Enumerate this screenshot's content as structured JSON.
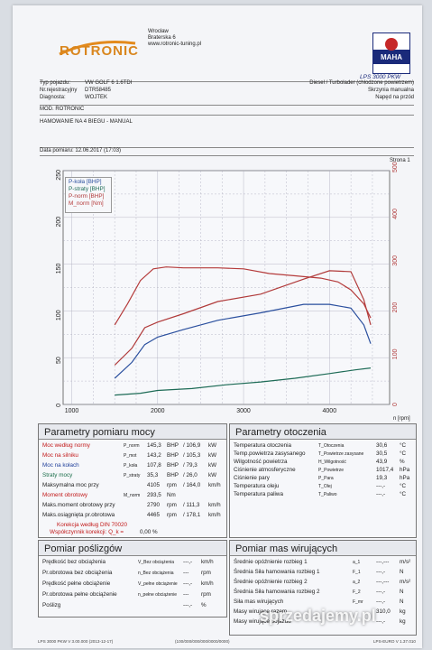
{
  "header": {
    "logo_text": "ROTRONIC",
    "company_address_lines": [
      "Wrocław",
      "Braterska 6",
      "www.rotronic-tuning.pl"
    ],
    "dyno_badge": "MAHA",
    "dyno_model": "LPS 3000 PKW"
  },
  "vehicle": {
    "type_label": "Typ pojazdu:",
    "type_value": "VW GOLF 6 1.6TDI",
    "reg_label": "Nr.rejestracyjny",
    "reg_value": "DTR58485",
    "diag_label": "Diagnosta:",
    "diag_value": "WOJTEK",
    "engine_line": "Diesel / Turbolader (chłodzone powietrzem)",
    "gearbox_line": "Skrzynia manualna",
    "drive_line": "Napęd na przód",
    "mod_label": "MOD. ROTRONIC",
    "test_label": "HAMOWANIE NA 4 BIEGU - MANUAL",
    "date_label": "Data pomiaru: 12.06.2017 (17:03)",
    "page_label": "Strona 1"
  },
  "chart_data": {
    "type": "line",
    "x_label": "n [rpm]",
    "x_ticks": [
      1000,
      2000,
      3000,
      4000
    ],
    "xlim": [
      900,
      4700
    ],
    "left_axis": {
      "range": [
        0,
        250
      ],
      "ticks": [
        0,
        50,
        100,
        150,
        200,
        250
      ]
    },
    "right_axis": {
      "range": [
        0,
        500
      ],
      "ticks": [
        0,
        100,
        200,
        300,
        400,
        500
      ]
    },
    "legend": [
      "P-koła [BHP]",
      "P-straty [BHP]",
      "P-norm [BHP]",
      "M_norm [Nm]"
    ],
    "series": [
      {
        "name": "P-koła [BHP]",
        "color": "#2a4f9e",
        "axis": "left",
        "points": [
          [
            1500,
            28
          ],
          [
            1700,
            45
          ],
          [
            1850,
            64
          ],
          [
            2000,
            72
          ],
          [
            2300,
            80
          ],
          [
            2700,
            90
          ],
          [
            3200,
            98
          ],
          [
            3700,
            107
          ],
          [
            4000,
            107
          ],
          [
            4250,
            103
          ],
          [
            4400,
            85
          ],
          [
            4480,
            65
          ]
        ]
      },
      {
        "name": "P-norm [BHP]",
        "color": "#b03a3a",
        "axis": "left",
        "points": [
          [
            1500,
            42
          ],
          [
            1700,
            60
          ],
          [
            1850,
            82
          ],
          [
            2000,
            88
          ],
          [
            2300,
            97
          ],
          [
            2700,
            110
          ],
          [
            3200,
            118
          ],
          [
            3700,
            134
          ],
          [
            4000,
            143
          ],
          [
            4250,
            142
          ],
          [
            4400,
            112
          ],
          [
            4480,
            85
          ]
        ]
      },
      {
        "name": "P-straty [BHP]",
        "color": "#1d6b56",
        "axis": "left",
        "points": [
          [
            1500,
            10
          ],
          [
            1800,
            12
          ],
          [
            2000,
            15
          ],
          [
            2400,
            17
          ],
          [
            2800,
            21
          ],
          [
            3200,
            24
          ],
          [
            3600,
            28
          ],
          [
            4000,
            33
          ],
          [
            4300,
            37
          ],
          [
            4480,
            39
          ]
        ]
      },
      {
        "name": "M_norm [Nm]",
        "color": "#b53b3b",
        "axis": "right",
        "points": [
          [
            1500,
            170
          ],
          [
            1650,
            215
          ],
          [
            1800,
            265
          ],
          [
            1950,
            290
          ],
          [
            2100,
            294
          ],
          [
            2300,
            292
          ],
          [
            2700,
            292
          ],
          [
            3000,
            290
          ],
          [
            3300,
            280
          ],
          [
            3600,
            275
          ],
          [
            3900,
            270
          ],
          [
            4100,
            262
          ],
          [
            4250,
            245
          ],
          [
            4400,
            215
          ],
          [
            4480,
            185
          ]
        ]
      }
    ]
  },
  "pomiar_mocy": {
    "title": "Parametry pomiaru mocy",
    "rows": [
      {
        "label": "Moc według normy",
        "sym": "P_norm",
        "v1": "145,3",
        "u1": "BHP",
        "v2": "/ 106,9",
        "u2": "kW",
        "tone": "red"
      },
      {
        "label": "Moc na silniku",
        "sym": "P_mot",
        "v1": "143,2",
        "u1": "BHP",
        "v2": "/ 105,3",
        "u2": "kW",
        "tone": "red"
      },
      {
        "label": "Moc na kołach",
        "sym": "P_koła",
        "v1": "107,8",
        "u1": "BHP",
        "v2": "/ 79,3",
        "u2": "kW",
        "tone": "blue"
      },
      {
        "label": "Straty mocy",
        "sym": "P_straty",
        "v1": "35,3",
        "u1": "BHP",
        "v2": "/ 26,0",
        "u2": "kW",
        "tone": "grn"
      },
      {
        "label": "Maksymalna moc przy",
        "sym": "",
        "v1": "4105",
        "u1": "rpm",
        "v2": "/ 164,0",
        "u2": "km/h",
        "tone": ""
      },
      {
        "label": "Moment obrotowy",
        "sym": "M_norm",
        "v1": "293,5",
        "u1": "Nm",
        "v2": "",
        "u2": "",
        "tone": "red"
      },
      {
        "label": "Maks.moment obrotowy przy",
        "sym": "",
        "v1": "2790",
        "u1": "rpm",
        "v2": "/ 111,3",
        "u2": "km/h",
        "tone": ""
      },
      {
        "label": "Maks.osiągnięta pr.obrotowa",
        "sym": "",
        "v1": "4465",
        "u1": "rpm",
        "v2": "/ 178,1",
        "u2": "km/h",
        "tone": ""
      }
    ],
    "korekcja": "Korekcja według DIN 70020",
    "wspolczynnik": "Współczynnik korekcji: Q_k =",
    "wspolczynnik_value": "0,00 %"
  },
  "otoczenie": {
    "title": "Parametry otoczenia",
    "rows": [
      {
        "label": "Temperatura otoczenia",
        "sym": "T_Otoczenia",
        "v": "30,6",
        "u": "°C"
      },
      {
        "label": "Temp.powietrza zasysanego",
        "sym": "T_Powietrze zasysane",
        "v": "30,5",
        "u": "°C"
      },
      {
        "label": "Wilgotność powietrza",
        "sym": "H_Wilgotność",
        "v": "43,9",
        "u": "%"
      },
      {
        "label": "Ciśnienie atmosferyczne",
        "sym": "P_Powietrze",
        "v": "1017,4",
        "u": "hPa"
      },
      {
        "label": "Ciśnienie pary",
        "sym": "P_Para",
        "v": "19,3",
        "u": "hPa"
      },
      {
        "label": "Temperatura oleju",
        "sym": "T_Olej",
        "v": "---,-",
        "u": "°C"
      },
      {
        "label": "Temperatura paliwa",
        "sym": "T_Paliwo",
        "v": "---,-",
        "u": "°C"
      }
    ]
  },
  "posligi": {
    "title": "Pomiar poślizgów",
    "rows": [
      {
        "label": "Prędkość bez obciążenia",
        "sym": "V_Bez obciążenia",
        "v": "---,-",
        "u": "km/h"
      },
      {
        "label": "Pr.obrotowa bez obciążenia",
        "sym": "n_Bez obciążenia",
        "v": "---",
        "u": "rpm"
      },
      {
        "label": "Prędkość pełne obciążenie",
        "sym": "V_pełne obciążenie",
        "v": "---,-",
        "u": "km/h"
      },
      {
        "label": "Pr.obrotowa pełne obciążenie",
        "sym": "n_pełne obciążenie",
        "v": "---",
        "u": "rpm"
      },
      {
        "label": "Poślizg",
        "sym": "",
        "v": "---,-",
        "u": "%"
      }
    ]
  },
  "masy": {
    "title": "Pomiar mas wirujących",
    "rows": [
      {
        "label": "Średnie opóźnienie rozbieg 1",
        "sym": "a_1",
        "v": "---,---",
        "u": "m/s²"
      },
      {
        "label": "Średnia Siła hamowania rozbieg 1",
        "sym": "F_1",
        "v": "---,-",
        "u": "N"
      },
      {
        "label": "Średnie opóźnienie rozbieg 2",
        "sym": "a_2",
        "v": "---,---",
        "u": "m/s²"
      },
      {
        "label": "Średnia Siła hamowania rozbieg 2",
        "sym": "F_2",
        "v": "---,-",
        "u": "N"
      },
      {
        "label": "Siła mas wirujących",
        "sym": "F_mr",
        "v": "---,-",
        "u": "N"
      },
      {
        "label": "Masy wirujące razem",
        "sym": "",
        "v": "310,0",
        "u": "kg"
      },
      {
        "label": "Masy wirujące pojazdu",
        "sym": "",
        "v": "---,-",
        "u": "kg"
      }
    ]
  },
  "footer": {
    "left": "LPS 3000 PKW V 3.00.000 (2013-12-17)",
    "center": "(100/000/000/000/0000/0000)",
    "right": "LPS-EURO V 1.37.010"
  },
  "watermark": "sprzedajemy.pl"
}
